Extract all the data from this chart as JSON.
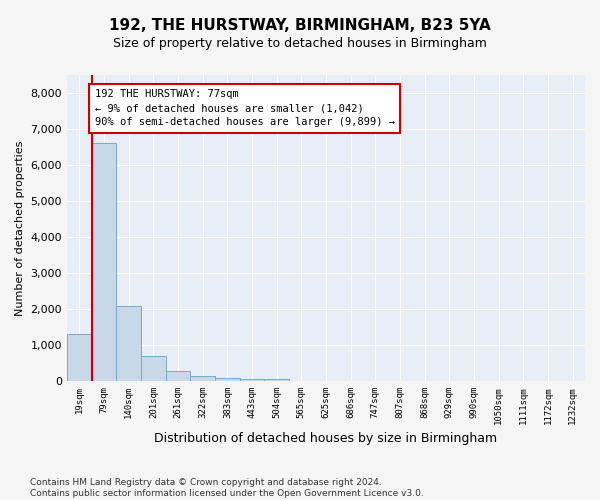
{
  "title": "192, THE HURSTWAY, BIRMINGHAM, B23 5YA",
  "subtitle": "Size of property relative to detached houses in Birmingham",
  "xlabel": "Distribution of detached houses by size in Birmingham",
  "ylabel": "Number of detached properties",
  "footnote": "Contains HM Land Registry data © Crown copyright and database right 2024.\nContains public sector information licensed under the Open Government Licence v3.0.",
  "bar_labels": [
    "19sqm",
    "79sqm",
    "140sqm",
    "201sqm",
    "261sqm",
    "322sqm",
    "383sqm",
    "443sqm",
    "504sqm",
    "565sqm",
    "625sqm",
    "686sqm",
    "747sqm",
    "807sqm",
    "868sqm",
    "929sqm",
    "990sqm",
    "1050sqm",
    "1111sqm",
    "1172sqm",
    "1232sqm"
  ],
  "bar_values": [
    1300,
    6600,
    2080,
    690,
    280,
    150,
    100,
    60,
    60,
    0,
    0,
    0,
    0,
    0,
    0,
    0,
    0,
    0,
    0,
    0,
    0
  ],
  "bar_color": "#c8d8e8",
  "bar_edge_color": "#7aaac8",
  "ylim": [
    0,
    8500
  ],
  "yticks": [
    0,
    1000,
    2000,
    3000,
    4000,
    5000,
    6000,
    7000,
    8000
  ],
  "highlight_color": "#cc0000",
  "annotation_title": "192 THE HURSTWAY: 77sqm",
  "annotation_line1": "← 9% of detached houses are smaller (1,042)",
  "annotation_line2": "90% of semi-detached houses are larger (9,899) →",
  "annotation_box_color": "#cc0000",
  "bg_color": "#e8eef5",
  "grid_color": "#ffffff",
  "fig_bg_color": "#f5f5f5",
  "title_fontsize": 11,
  "subtitle_fontsize": 9,
  "xlabel_fontsize": 9,
  "ylabel_fontsize": 8,
  "footnote_fontsize": 6.5,
  "tick_labelsize": 8,
  "xtick_labelsize": 6.5,
  "annotation_fontsize": 7.5
}
